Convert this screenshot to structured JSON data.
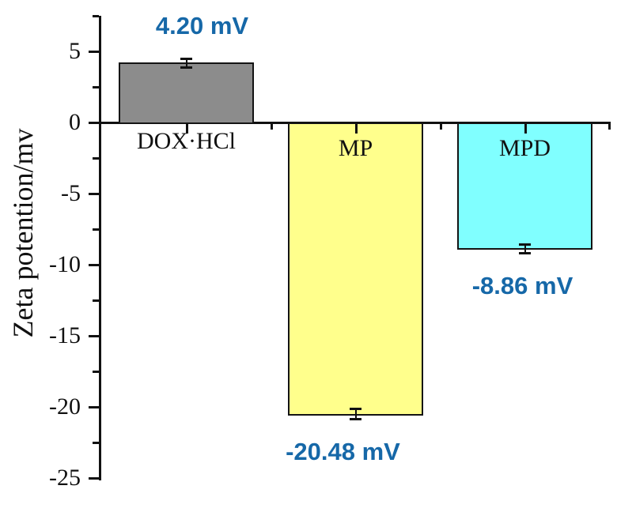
{
  "chart_data": {
    "type": "bar",
    "title": "",
    "ylabel": "Zeta potention/mv",
    "xlabel": "",
    "ylim": [
      -25,
      7.5
    ],
    "ytick_major_step": 5,
    "ytick_minor_step": 2.5,
    "yticks": [
      {
        "value": 5,
        "label": "5"
      },
      {
        "value": 0,
        "label": "0"
      },
      {
        "value": -5,
        "label": "-5"
      },
      {
        "value": -10,
        "label": "-10"
      },
      {
        "value": -15,
        "label": "-15"
      },
      {
        "value": -20,
        "label": "-20"
      },
      {
        "value": -25,
        "label": "-25"
      }
    ],
    "grid": false,
    "legend": false,
    "categories": [
      "DOX·HCl",
      "MP",
      "MPD"
    ],
    "values": [
      4.2,
      -20.48,
      -8.86
    ],
    "errors": [
      0.3,
      0.35,
      0.3
    ],
    "value_labels": [
      "4.20 mV",
      "-20.48 mV",
      "-8.86 mV"
    ],
    "bar_colors": [
      "#8C8C8C",
      "#FFFF8C",
      "#80FFFF"
    ],
    "bar_border_color": "#141414",
    "annotation_color": "#1668A8",
    "axis_color": "#111111",
    "background_color": "#FFFFFF"
  }
}
